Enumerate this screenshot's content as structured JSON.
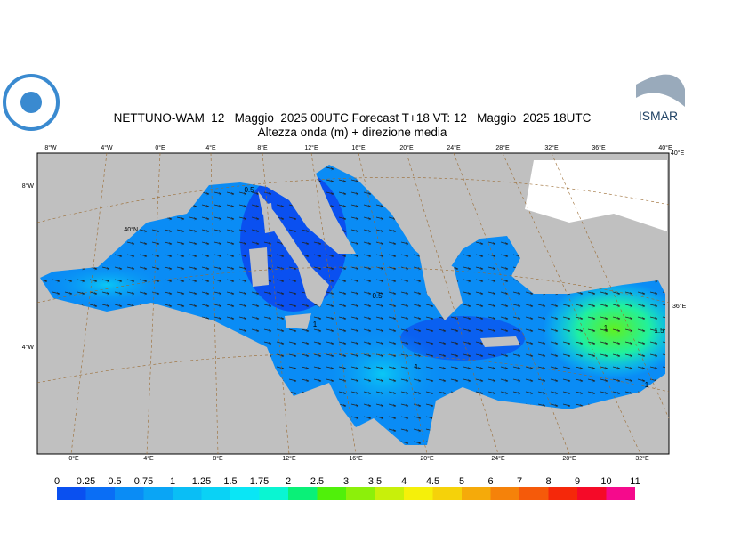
{
  "header": {
    "title": "NETTUNO-WAM  12   Maggio  2025 00UTC Forecast T+18 VT: 12   Maggio  2025 18UTC",
    "subtitle": "Altezza onda (m) + direzione media",
    "logo_text": "ISMAR"
  },
  "graticule": {
    "top": [
      "8°W",
      "4°W",
      "0°E",
      "4°E",
      "8°E",
      "12°E",
      "16°E",
      "20°E",
      "24°E",
      "28°E",
      "32°E",
      "36°E",
      "40°E"
    ],
    "bottom": [
      "0°E",
      "4°E",
      "8°E",
      "12°E",
      "16°E",
      "20°E",
      "24°E",
      "28°E",
      "32°E"
    ],
    "left": [
      "8°W",
      "40°N",
      "4°W"
    ],
    "right": [
      "40°E",
      "36°E"
    ]
  },
  "contour_labels": [
    "0.5",
    "0.5",
    "1",
    "1",
    "1",
    "1.5",
    "1"
  ],
  "legend": {
    "values": [
      0,
      0.25,
      0.5,
      0.75,
      1,
      1.25,
      1.5,
      1.75,
      2,
      2.5,
      3,
      3.5,
      4,
      4.5,
      5,
      6,
      7,
      8,
      9,
      10,
      11
    ],
    "colors": [
      "#0a50f0",
      "#0a6ef5",
      "#0a8cf5",
      "#0aa5f5",
      "#0abef5",
      "#0ad2f5",
      "#0ae6f5",
      "#0af5d2",
      "#0af078",
      "#50f00a",
      "#8cf00a",
      "#c8f00a",
      "#f5f00a",
      "#f5d20a",
      "#f5aa0a",
      "#f5820a",
      "#f55a0a",
      "#f5280a",
      "#f50a28",
      "#f50a8c"
    ]
  }
}
